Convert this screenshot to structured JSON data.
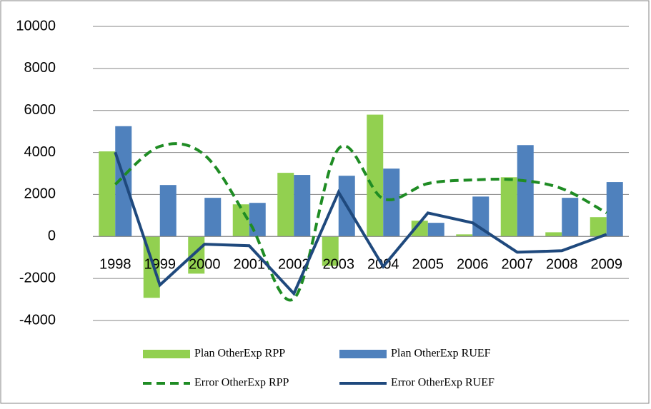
{
  "chart_data": {
    "type": "bar",
    "categories": [
      "1998",
      "1999",
      "2000",
      "2001",
      "2002",
      "2003",
      "2004",
      "2005",
      "2006",
      "2007",
      "2008",
      "2009"
    ],
    "series": [
      {
        "name": "Plan OtherExp RPP",
        "type": "bar",
        "color": "#92d050",
        "values": [
          4050,
          -2920,
          -1770,
          1530,
          3030,
          -1400,
          5800,
          750,
          100,
          2820,
          200,
          920
        ]
      },
      {
        "name": "Plan OtherExp RUEF",
        "type": "bar",
        "color": "#4f81bd",
        "values": [
          5250,
          2450,
          1840,
          1600,
          2930,
          2890,
          3230,
          650,
          1900,
          4350,
          1840,
          2590
        ]
      },
      {
        "name": "Error OtherExp RPP",
        "type": "line",
        "style": "dashed",
        "color": "#1f8c24",
        "values": [
          2480,
          4290,
          3880,
          700,
          -2960,
          4180,
          1800,
          2520,
          2690,
          2690,
          2280,
          1120
        ]
      },
      {
        "name": "Error OtherExp RUEF",
        "type": "line",
        "style": "solid",
        "color": "#1f497d",
        "values": [
          4010,
          -2310,
          -370,
          -440,
          -2720,
          2110,
          -1430,
          1120,
          650,
          -750,
          -680,
          100
        ]
      }
    ],
    "ylim": [
      -4000,
      10000
    ],
    "yticks": [
      -4000,
      -2000,
      0,
      2000,
      4000,
      6000,
      8000,
      10000
    ],
    "grid": true
  }
}
